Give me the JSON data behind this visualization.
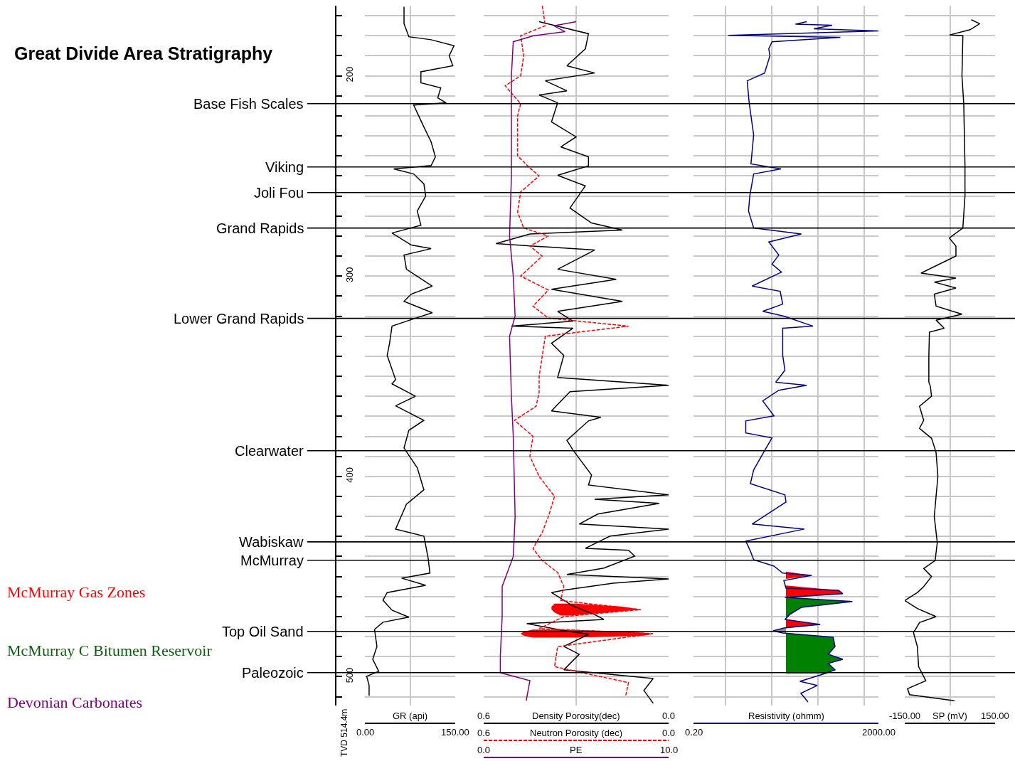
{
  "chart_data": [
    {
      "type": "line",
      "title": "Great Divide Area Stratigraphy",
      "xlabel": "GR (api)",
      "ylabel": "TVD 514.4m",
      "grid": true,
      "xlim": [
        0,
        150
      ],
      "xticks": [
        {
          "value": 0,
          "label": "0.00"
        },
        {
          "value": 75,
          "label": null
        },
        {
          "value": 150,
          "label": "150.00"
        }
      ],
      "ylim": [
        514.4,
        165
      ],
      "yticks": [
        {
          "value": 170,
          "label": null
        },
        {
          "value": 180,
          "label": null
        },
        {
          "value": 190,
          "label": null
        },
        200,
        {
          "value": 210,
          "label": null
        },
        {
          "value": 220,
          "label": null
        },
        {
          "value": 230,
          "label": null
        },
        {
          "value": 240,
          "label": null
        },
        {
          "value": 250,
          "label": null
        },
        {
          "value": 260,
          "label": null
        },
        {
          "value": 270,
          "label": null
        },
        {
          "value": 280,
          "label": null
        },
        {
          "value": 290,
          "label": null
        },
        300,
        {
          "value": 310,
          "label": null
        },
        {
          "value": 320,
          "label": null
        },
        {
          "value": 330,
          "label": null
        },
        {
          "value": 340,
          "label": null
        },
        {
          "value": 350,
          "label": null
        },
        {
          "value": 360,
          "label": null
        },
        {
          "value": 370,
          "label": null
        },
        {
          "value": 380,
          "label": null
        },
        {
          "value": 390,
          "label": null
        },
        400,
        {
          "value": 410,
          "label": null
        },
        {
          "value": 420,
          "label": null
        },
        {
          "value": 430,
          "label": null
        },
        {
          "value": 440,
          "label": null
        },
        {
          "value": 450,
          "label": null
        },
        {
          "value": 460,
          "label": null
        },
        {
          "value": 470,
          "label": null
        },
        {
          "value": 480,
          "label": null
        },
        {
          "value": 490,
          "label": null
        },
        500,
        {
          "value": 510,
          "label": null
        }
      ],
      "series": [
        {
          "color": "#000000",
          "x": [
            65,
            65,
            73,
            110,
            148,
            140,
            146,
            93,
            93,
            126,
            121,
            135,
            81,
            87,
            98,
            110,
            117,
            110,
            48,
            81,
            98,
            101,
            87,
            93,
            45,
            77,
            110,
            65,
            69,
            112,
            77,
            65,
            112,
            84,
            45,
            41,
            37,
            51,
            45,
            84,
            51,
            98,
            73,
            65,
            87,
            98,
            69,
            51,
            98,
            105,
            108,
            61,
            101,
            37,
            30,
            45,
            73,
            30,
            16,
            20,
            13,
            23,
            3,
            7,
            7
          ],
          "values": [
            165.5,
            174,
            180.5,
            182,
            185,
            190,
            195,
            198,
            203.5,
            206,
            211,
            213.5,
            214.6,
            218.5,
            225.6,
            233,
            240.5,
            244.8,
            246.5,
            249,
            254,
            260,
            267.5,
            274.6,
            278.5,
            284.5,
            286.3,
            289.5,
            296.6,
            305,
            309,
            312.6,
            318.3,
            321,
            325,
            333.5,
            339.6,
            351.7,
            353.8,
            360,
            364.8,
            372,
            377,
            385.8,
            395.7,
            406.7,
            413.9,
            426.3,
            429.8,
            440.8,
            448.3,
            450.8,
            454.4,
            458,
            461.8,
            466.8,
            470.3,
            472.8,
            476.4,
            484.9,
            491.3,
            497.3,
            499.8,
            504.4,
            509.4
          ]
        }
      ],
      "ref_lines": [
        {
          "axis": "y",
          "value": 213.9,
          "label": "Base Fish Scales"
        },
        {
          "axis": "y",
          "value": 245.5,
          "label": "Viking"
        },
        {
          "axis": "y",
          "value": 258.3,
          "label": "Joli Fou"
        },
        {
          "axis": "y",
          "value": 276.0,
          "label": "Grand Rapids"
        },
        {
          "axis": "y",
          "value": 321.1,
          "label": "Lower Grand Rapids"
        },
        {
          "axis": "y",
          "value": 387.2,
          "label": "Clearwater"
        },
        {
          "axis": "y",
          "value": 432.7,
          "label": "Wabiskaw"
        },
        {
          "axis": "y",
          "value": 441.9,
          "label": "McMurray"
        },
        {
          "axis": "y",
          "value": 477.4,
          "label": "Top Oil Sand"
        },
        {
          "axis": "y",
          "value": 498.0,
          "label": "Paleozoic"
        }
      ],
      "annotations": [
        "McMurray Gas Zones",
        "McMurray C Bitumen Reservoir",
        "Devonian Carbonates"
      ]
    },
    {
      "type": "line",
      "tick_labels": "x",
      "grid": true,
      "xlabel": "Density Porosity(dec)",
      "xlim": [
        0.6,
        0.0
      ],
      "xticks": [
        0.6,
        {
          "value": 0.3,
          "label": null
        },
        {
          "value": 0.0,
          "label": "0.0"
        }
      ],
      "x2label": "Neutron Porosity (dec)",
      "x2lim": [
        0.6,
        0.0
      ],
      "x2ticks": [
        0.6,
        {
          "value": 0.0,
          "label": "0.0"
        }
      ],
      "ylim": [
        514.4,
        165
      ],
      "yticks": [
        170,
        180,
        190,
        200,
        210,
        220,
        230,
        240,
        250,
        260,
        270,
        280,
        290,
        300,
        310,
        320,
        330,
        340,
        350,
        360,
        370,
        380,
        390,
        400,
        410,
        420,
        430,
        440,
        450,
        460,
        470,
        480,
        490,
        500,
        510
      ],
      "series": [
        {
          "type": "area",
          "color": "#ff0000",
          "x": [
            0.3,
            0.15,
            0.09,
            0.2,
            0.32,
            0.35,
            0.37,
            0.38,
            0.38,
            0.37
          ],
          "values": [
            463.5,
            465,
            466.5,
            468,
            469.5,
            469.5,
            468,
            466.5,
            465,
            463.5
          ]
        },
        {
          "type": "area",
          "color": "#ff0000",
          "x": [
            0.35,
            0.12,
            0.05,
            0.08,
            0.3,
            0.44,
            0.47,
            0.48,
            0.47,
            0.44
          ],
          "values": [
            476.5,
            477.5,
            478.5,
            479.5,
            480.5,
            480.5,
            479.5,
            478.5,
            477.5,
            476.5
          ]
        },
        {
          "color": "#000000",
          "x": [
            0.42,
            0.26,
            0.27,
            0.33,
            0.24,
            0.4,
            0.33,
            0.42,
            0.36,
            0.38,
            0.3,
            0.35,
            0.26,
            0.26,
            0.36,
            0.27,
            0.32,
            0.25,
            0.15,
            0.45,
            0.56,
            0.24,
            0.36,
            0.17,
            0.38,
            0.15,
            0.36,
            0.31,
            0.51,
            0.31,
            0.38,
            0.34,
            0.36,
            0.0,
            0.32,
            0.38,
            0.22,
            0.26,
            0.33,
            0.31,
            0.25,
            0.26,
            0.0,
            0.24,
            0.03,
            0.23,
            0.29,
            0.0,
            0.19,
            0.27,
            0.13,
            0.11,
            0.21,
            0.33,
            0.0,
            0.18,
            0.34,
            0.38,
            0.31,
            0.24,
            0.21,
            0.46,
            0.36,
            0.26,
            0.34,
            0.29,
            0.34,
            0.05,
            0.08,
            0.05
          ],
          "values": [
            173,
            179,
            186.5,
            195,
            198.6,
            202.5,
            207.5,
            209.6,
            213.5,
            223,
            230.5,
            235.5,
            240.5,
            245,
            249.7,
            255,
            266,
            273.5,
            277,
            279,
            283.8,
            287,
            296.6,
            301.6,
            306.6,
            312.6,
            317.6,
            322.5,
            325,
            326,
            333.5,
            339.6,
            350.6,
            354.5,
            357.7,
            367.3,
            370.5,
            372.3,
            382,
            386.9,
            399.3,
            404.3,
            409.2,
            411.4,
            413.5,
            418.8,
            423.8,
            426.3,
            429.8,
            435.9,
            436.9,
            439.8,
            445.8,
            449,
            451.2,
            453.3,
            456.8,
            458,
            464.7,
            469,
            471.4,
            473.5,
            476.4,
            478.9,
            484.9,
            488.8,
            496.6,
            500.9,
            506.9,
            513.3
          ]
        },
        {
          "color": "#ff0000",
          "axis": "x2",
          "line_style": "dashed",
          "x": [
            0.41,
            0.4,
            0.48,
            0.47,
            0.48,
            0.53,
            0.48,
            0.49,
            0.49,
            0.49,
            0.45,
            0.42,
            0.48,
            0.49,
            0.47,
            0.39,
            0.45,
            0.41,
            0.48,
            0.39,
            0.44,
            0.39,
            0.13,
            0.4,
            0.41,
            0.42,
            0.42,
            0.43,
            0.5,
            0.44,
            0.45,
            0.42,
            0.37,
            0.39,
            0.41,
            0.44,
            0.41,
            0.36,
            0.34,
            0.35,
            0.09,
            0.34,
            0.42,
            0.05,
            0.36,
            0.37,
            0.13,
            0.14
          ],
          "values": [
            165,
            175,
            180,
            190,
            200,
            205,
            214,
            220,
            230,
            240,
            246,
            250,
            258,
            268,
            276,
            280,
            285,
            290,
            300,
            307,
            315,
            321,
            325,
            330,
            340,
            350,
            358,
            365,
            372,
            380,
            390,
            400,
            410,
            420,
            428,
            436,
            442,
            448,
            455,
            462,
            466.5,
            470,
            476,
            478.5,
            485,
            495,
            503,
            510
          ]
        }
      ],
      "ref_lines": [
        {
          "axis": "y",
          "value": 213.9
        },
        {
          "axis": "y",
          "value": 245.5
        },
        {
          "axis": "y",
          "value": 258.3
        },
        {
          "axis": "y",
          "value": 276.0
        },
        {
          "axis": "y",
          "value": 321.1
        },
        {
          "axis": "y",
          "value": 387.2
        },
        {
          "axis": "y",
          "value": 432.7
        },
        {
          "axis": "y",
          "value": 441.9
        },
        {
          "axis": "y",
          "value": 477.4
        },
        {
          "axis": "y",
          "value": 498.0
        }
      ]
    },
    {
      "type": "line",
      "tick_labels": "x",
      "xlabel": "PE",
      "xlim": [
        0,
        10
      ],
      "xticks": [
        {
          "value": 0,
          "label": "0.0"
        },
        {
          "value": 10,
          "label": "10.0"
        }
      ],
      "ylim": [
        514.4,
        165
      ],
      "series": [
        {
          "color": "#800080",
          "x": [
            5.0,
            3.8,
            4.4,
            2.7,
            1.6,
            1.5,
            1.5,
            1.4,
            1.6,
            1.7,
            1.4,
            1.5,
            1.6,
            1.7,
            1.6,
            1.0,
            1.0,
            0.9,
            0.9,
            2.5,
            2.3
          ],
          "values": [
            173,
            175,
            178,
            180,
            183,
            200,
            250,
            280,
            300,
            320,
            330,
            360,
            380,
            420,
            440,
            455,
            470,
            490,
            498,
            502,
            512
          ]
        }
      ]
    },
    {
      "type": "line",
      "tick_labels": "x",
      "grid": true,
      "log": "x",
      "xlabel": "Resistivity (ohmm)",
      "xlim": [
        0.2,
        2000
      ],
      "xticks": [
        {
          "value": 0.2,
          "label": "0.20"
        },
        {
          "value": 1,
          "label": null
        },
        {
          "value": 10,
          "label": null
        },
        {
          "value": 100,
          "label": null
        },
        {
          "value": 1000,
          "label": null
        },
        {
          "value": 2000,
          "label": "2000.00"
        }
      ],
      "ylim": [
        514.4,
        165
      ],
      "yticks": [
        170,
        180,
        190,
        200,
        210,
        220,
        230,
        240,
        250,
        260,
        270,
        280,
        290,
        300,
        310,
        320,
        330,
        340,
        350,
        360,
        370,
        380,
        390,
        400,
        410,
        420,
        430,
        440,
        450,
        460,
        470,
        480,
        490,
        500,
        510
      ],
      "series": [
        {
          "type": "area",
          "color": "#ff0000",
          "x": [
            20,
            72,
            20
          ],
          "values": [
            447.6,
            449.4,
            451.2
          ]
        },
        {
          "type": "area",
          "color": "#ff0000",
          "x": [
            20,
            275,
            340,
            20
          ],
          "values": [
            454.5,
            456.9,
            458.6,
            460.4
          ]
        },
        {
          "type": "area",
          "color": "#008000",
          "x": [
            20,
            545,
            43,
            24,
            20
          ],
          "values": [
            460.4,
            462.5,
            465.4,
            469,
            471.4
          ]
        },
        {
          "type": "area",
          "color": "#ff0000",
          "x": [
            20,
            110,
            20
          ],
          "values": [
            471.4,
            473.9,
            475.7
          ]
        },
        {
          "type": "area",
          "color": "#a88a7a",
          "x": [
            20,
            10.5,
            20
          ],
          "values": [
            475.7,
            477.1,
            478.2
          ]
        },
        {
          "type": "area",
          "color": "#008000",
          "x": [
            20,
            210,
            230,
            165,
            340,
            165,
            230,
            140,
            20
          ],
          "values": [
            478.2,
            480.3,
            484.9,
            488.8,
            491.3,
            493.4,
            496.6,
            498.4,
            498.4
          ]
        },
        {
          "color": "#00008b",
          "x": [
            56,
            32,
            200,
            80,
            2000,
            1.13,
            300,
            10,
            8.5,
            9,
            6.9,
            2.9,
            3.2,
            4,
            3.5,
            15.6,
            4,
            3.3,
            3.1,
            4,
            43,
            8.5,
            14,
            10,
            16,
            3.7,
            15,
            17,
            6.3,
            18,
            77,
            17,
            17,
            19,
            12,
            56,
            14,
            6.3,
            11,
            2.7,
            2.7,
            10,
            7,
            4,
            3.4,
            19,
            20,
            3.7,
            50,
            2.7,
            3.4,
            4,
            11,
            17,
            72,
            18,
            20,
            275,
            340,
            19,
            545,
            43,
            24,
            19,
            110,
            18,
            10.5,
            17,
            210,
            230,
            165,
            340,
            165,
            230,
            140,
            40,
            95,
            42,
            60
          ],
          "values": [
            173,
            174.2,
            174.8,
            176.5,
            177.6,
            179.8,
            180.8,
            183,
            186.5,
            190,
            198.6,
            202.5,
            213.5,
            229.5,
            244,
            246.5,
            249,
            260,
            267.5,
            276,
            279,
            283,
            289.5,
            294,
            298,
            305,
            307.6,
            314,
            317.6,
            320,
            325,
            326,
            339.6,
            347,
            353,
            354.5,
            357,
            362.3,
            369.8,
            372.3,
            378.3,
            380.8,
            386.9,
            396.8,
            403.6,
            409.2,
            412.8,
            423.8,
            426.3,
            432.3,
            437.3,
            441.6,
            444.8,
            448.3,
            449.4,
            452,
            455.8,
            456.9,
            458.6,
            460.4,
            462.5,
            465.4,
            469,
            471.4,
            473.9,
            475.7,
            477.1,
            478.2,
            480.3,
            484.9,
            488.8,
            491.3,
            493.4,
            496.6,
            498.4,
            502.3,
            504.4,
            508.3,
            512.6
          ]
        }
      ],
      "ref_lines": [
        {
          "axis": "y",
          "value": 213.9
        },
        {
          "axis": "y",
          "value": 245.5
        },
        {
          "axis": "y",
          "value": 258.3
        },
        {
          "axis": "y",
          "value": 276.0
        },
        {
          "axis": "y",
          "value": 321.1
        },
        {
          "axis": "y",
          "value": 387.2
        },
        {
          "axis": "y",
          "value": 432.7
        },
        {
          "axis": "y",
          "value": 441.9
        },
        {
          "axis": "y",
          "value": 477.4
        },
        {
          "axis": "y",
          "value": 498.0
        }
      ]
    },
    {
      "type": "line",
      "tick_labels": "x",
      "grid": true,
      "xlabel": "SP (mV)",
      "xlim": [
        -150,
        150
      ],
      "xticks": [
        {
          "value": -150,
          "label": "-150.00"
        },
        {
          "value": 0,
          "label": null
        },
        {
          "value": 150,
          "label": "150.00"
        }
      ],
      "ylim": [
        514.4,
        165
      ],
      "yticks": [
        170,
        180,
        190,
        200,
        210,
        220,
        230,
        240,
        250,
        260,
        270,
        280,
        290,
        300,
        310,
        320,
        330,
        340,
        350,
        360,
        370,
        380,
        390,
        400,
        410,
        420,
        430,
        440,
        450,
        460,
        470,
        480,
        490,
        500,
        510
      ],
      "series": [
        {
          "color": "#000000",
          "x": [
            71,
            99,
            67,
            -1,
            43,
            40,
            46,
            50,
            50,
            43,
            -2,
            20,
            20,
            -96,
            20,
            -52,
            20,
            -52,
            -46,
            40,
            -46,
            -19,
            -68,
            -70,
            -70,
            -65,
            -61,
            -101,
            -87,
            -101,
            -61,
            -46,
            -40,
            -52,
            -42,
            -49,
            -87,
            -61,
            -87,
            -108,
            -150,
            -108,
            -46,
            -101,
            -121,
            -108,
            -104,
            -80,
            -141,
            -134,
            15
          ],
          "values": [
            172,
            174,
            177,
            179.6,
            180,
            200,
            214,
            245,
            260,
            276,
            281,
            285,
            290,
            298.5,
            301,
            303,
            306,
            309,
            315,
            319,
            322,
            326,
            328,
            340,
            353,
            355,
            360,
            365,
            372,
            376,
            381,
            388,
            400,
            420,
            433,
            442,
            446,
            450,
            455,
            458,
            462,
            466,
            470,
            473,
            478,
            485,
            495,
            502,
            506,
            509,
            512
          ]
        }
      ],
      "ref_lines": [
        {
          "axis": "y",
          "value": 213.9
        },
        {
          "axis": "y",
          "value": 245.5
        },
        {
          "axis": "y",
          "value": 258.3
        },
        {
          "axis": "y",
          "value": 276.0
        },
        {
          "axis": "y",
          "value": 321.1
        },
        {
          "axis": "y",
          "value": 387.2
        },
        {
          "axis": "y",
          "value": 432.7
        },
        {
          "axis": "y",
          "value": 441.9
        },
        {
          "axis": "y",
          "value": 477.4
        },
        {
          "axis": "y",
          "value": 498.0
        }
      ]
    }
  ]
}
